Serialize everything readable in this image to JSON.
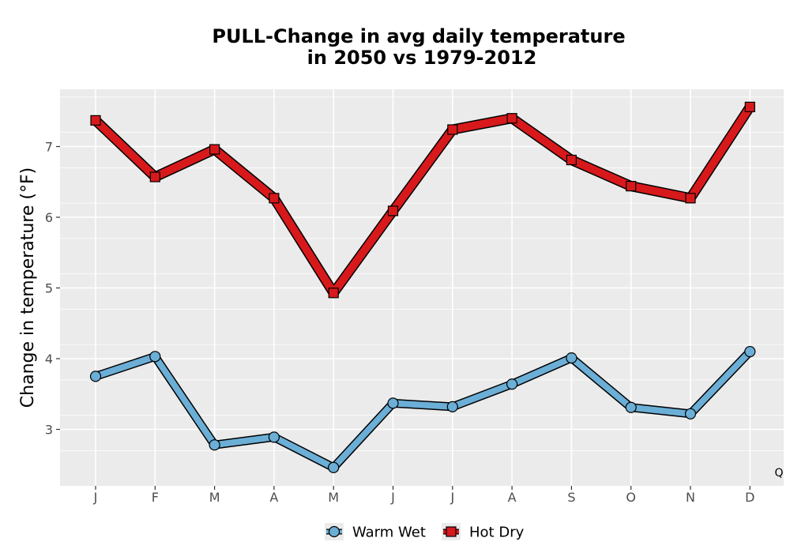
{
  "chart_data": {
    "type": "line",
    "title": "PULL-Change in avg daily temperature",
    "subtitle": "in 2050 vs 1979-2012",
    "xlabel": "",
    "ylabel": "Change in temperature (°F)",
    "categories": [
      "J",
      "F",
      "M",
      "A",
      "M",
      "J",
      "J",
      "A",
      "S",
      "O",
      "N",
      "D"
    ],
    "yticks": [
      3,
      4,
      5,
      6,
      7
    ],
    "ylim": [
      2.2,
      7.8
    ],
    "grid": true,
    "legend_position": "bottom",
    "corner_label": "Q",
    "series": [
      {
        "name": "Warm Wet",
        "marker": "circle",
        "color": "#6baed6",
        "values": [
          3.75,
          4.03,
          2.78,
          2.89,
          2.46,
          3.37,
          3.32,
          3.64,
          4.01,
          3.31,
          3.22,
          4.1
        ]
      },
      {
        "name": "Hot Dry",
        "marker": "square",
        "color": "#d7191c",
        "values": [
          7.37,
          6.57,
          6.96,
          6.27,
          4.93,
          6.09,
          7.24,
          7.4,
          6.81,
          6.44,
          6.27,
          7.56
        ]
      }
    ]
  }
}
